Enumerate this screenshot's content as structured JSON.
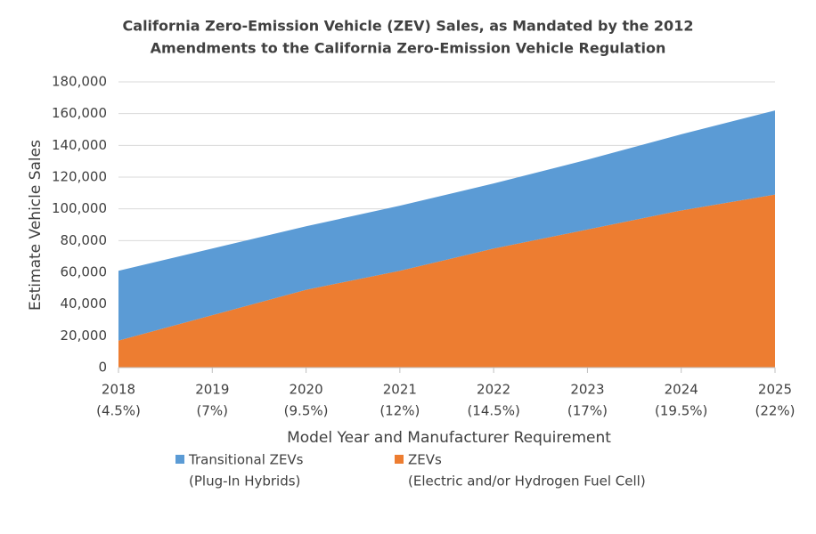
{
  "chart_data": {
    "type": "stacked_area",
    "title": [
      "California Zero-Emission Vehicle (ZEV) Sales, as Mandated by the 2012",
      "Amendments to the California Zero-Emission Vehicle Regulation"
    ],
    "x_label": "Model Year and Manufacturer Requirement",
    "y_label": "Estimate Vehicle Sales",
    "categories": [
      [
        "2018",
        "(4.5%)"
      ],
      [
        "2019",
        "(7%)"
      ],
      [
        "2020",
        "(9.5%)"
      ],
      [
        "2021",
        "(12%)"
      ],
      [
        "2022",
        "(14.5%)"
      ],
      [
        "2023",
        "(17%)"
      ],
      [
        "2024",
        "(19.5%)"
      ],
      [
        "2025",
        "(22%)"
      ]
    ],
    "series": [
      {
        "name": "ZEVs",
        "subname": "(Electric and/or Hydrogen Fuel Cell)",
        "color": "#ed7d31",
        "values": [
          17000,
          33000,
          49000,
          61000,
          75000,
          87000,
          99000,
          109000
        ]
      },
      {
        "name": "Transitional ZEVs",
        "subname": "(Plug-In Hybrids)",
        "color": "#5b9bd5",
        "values": [
          44000,
          42000,
          40000,
          41000,
          41000,
          44000,
          48000,
          53000
        ]
      }
    ],
    "ylim": [
      0,
      180000
    ],
    "yticks": [
      0,
      {
        "value": 20000,
        "label": "20,000"
      },
      {
        "value": 40000,
        "label": "40,000"
      },
      {
        "value": 60000,
        "label": "60,000"
      },
      {
        "value": 80000,
        "label": "80,000"
      },
      {
        "value": 100000,
        "label": "100,000"
      },
      {
        "value": 120000,
        "label": "120,000"
      },
      {
        "value": 140000,
        "label": "140,000"
      },
      {
        "value": 160000,
        "label": "160,000"
      },
      {
        "value": 180000,
        "label": "180,000"
      }
    ],
    "grid": true
  }
}
